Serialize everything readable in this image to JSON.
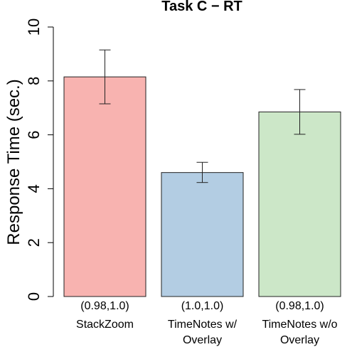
{
  "chart_data": {
    "type": "bar",
    "title": "Task C − RT",
    "ylabel": "Response Time (sec.)",
    "xlabel": "",
    "ylim": [
      0,
      10
    ],
    "yticks": [
      0,
      2,
      4,
      6,
      8,
      10
    ],
    "grid": false,
    "categories": [
      {
        "annotation": "(0.98,1.0)",
        "lines": [
          "StackZoom"
        ]
      },
      {
        "annotation": "(1.0,1.0)",
        "lines": [
          "TimeNotes w/",
          "Overlay"
        ]
      },
      {
        "annotation": "(0.98,1.0)",
        "lines": [
          "TimeNotes w/o",
          "Overlay"
        ]
      }
    ],
    "values": [
      8.15,
      4.6,
      6.85
    ],
    "error_low": [
      7.15,
      4.23,
      6.02
    ],
    "error_high": [
      9.15,
      4.98,
      7.68
    ],
    "colors": [
      "#f8b3b0",
      "#b3cde3",
      "#cce7c8"
    ]
  }
}
